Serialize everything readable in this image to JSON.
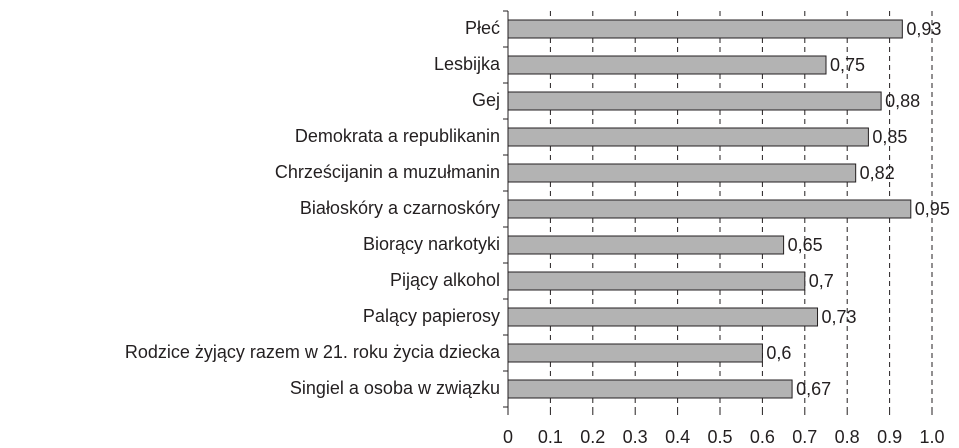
{
  "chart_data": {
    "type": "bar",
    "orientation": "horizontal",
    "categories": [
      "Płeć",
      "Lesbijka",
      "Gej",
      "Demokrata a republikanin",
      "Chrześcijanin a muzułmanin",
      "Białoskóry a czarnoskóry",
      "Biorący narkotyki",
      "Pijący alkohol",
      "Palący papierosy",
      "Rodzice żyjący razem w 21. roku życia dziecka",
      "Singiel a osoba w związku"
    ],
    "values": [
      0.93,
      0.75,
      0.88,
      0.85,
      0.82,
      0.95,
      0.65,
      0.7,
      0.73,
      0.6,
      0.67
    ],
    "value_labels": [
      "0,93",
      "0,75",
      "0,88",
      "0,85",
      "0,82",
      "0,95",
      "0,65",
      "0,7",
      "0,73",
      "0,6",
      "0,67"
    ],
    "color": "#b3b3b3",
    "xlim": [
      0,
      1
    ],
    "xticks": [
      0,
      0.1,
      0.2,
      0.3,
      0.4,
      0.5,
      0.6,
      0.7,
      0.8,
      0.9,
      {
        "value": 1,
        "label": "1.0"
      }
    ],
    "grid": true
  }
}
